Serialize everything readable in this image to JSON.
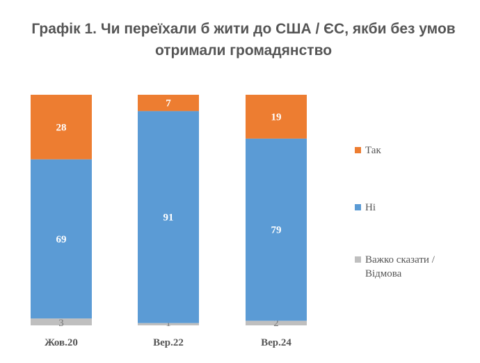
{
  "title": "Графік 1. Чи переїхали б жити до США / ЄС, якби без умов отримали громадянство",
  "colors": {
    "yes": "#ED7D31",
    "no": "#5B9BD5",
    "hard": "#BFBFBF"
  },
  "chart_data": {
    "type": "bar",
    "stacked": true,
    "percent_scale": true,
    "categories": [
      "Жов.20",
      "Вер.22",
      "Вер.24"
    ],
    "series": [
      {
        "name": "Так",
        "values": [
          28,
          7,
          19
        ],
        "color": "#ED7D31"
      },
      {
        "name": "Ні",
        "values": [
          69,
          91,
          79
        ],
        "color": "#5B9BD5"
      },
      {
        "name": "Важко сказати / Відмова",
        "values": [
          3,
          1,
          2
        ],
        "color": "#BFBFBF"
      }
    ],
    "legend_position": "right",
    "grid": false,
    "ylim": [
      0,
      100
    ]
  }
}
